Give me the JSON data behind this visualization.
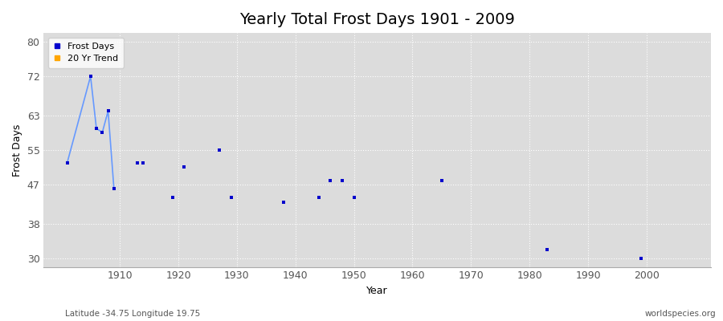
{
  "title": "Yearly Total Frost Days 1901 - 2009",
  "xlabel": "Year",
  "ylabel": "Frost Days",
  "footer_left": "Latitude -34.75 Longitude 19.75",
  "footer_right": "worldspecies.org",
  "xlim": [
    1897,
    2011
  ],
  "ylim": [
    28,
    82
  ],
  "yticks": [
    30,
    38,
    47,
    55,
    63,
    72,
    80
  ],
  "xticks": [
    1910,
    1920,
    1930,
    1940,
    1950,
    1960,
    1970,
    1980,
    1990,
    2000
  ],
  "scatter_color": "#0000cc",
  "line_color": "#6699ff",
  "scatter_data": [
    [
      1901,
      52
    ],
    [
      1905,
      72
    ],
    [
      1906,
      60
    ],
    [
      1907,
      59
    ],
    [
      1908,
      64
    ],
    [
      1909,
      46
    ],
    [
      1913,
      52
    ],
    [
      1914,
      52
    ],
    [
      1919,
      44
    ],
    [
      1921,
      51
    ],
    [
      1927,
      55
    ],
    [
      1929,
      44
    ],
    [
      1938,
      43
    ],
    [
      1944,
      44
    ],
    [
      1946,
      48
    ],
    [
      1948,
      48
    ],
    [
      1950,
      44
    ],
    [
      1965,
      48
    ],
    [
      1983,
      32
    ],
    [
      1999,
      30
    ]
  ],
  "line_data": [
    [
      1901,
      52
    ],
    [
      1905,
      72
    ],
    [
      1906,
      60
    ],
    [
      1907,
      59
    ],
    [
      1908,
      64
    ],
    [
      1909,
      46
    ]
  ],
  "fig_bg_color": "#ffffff",
  "plot_bg_color": "#dcdcdc",
  "grid_color": "#ffffff",
  "legend_labels": [
    "Frost Days",
    "20 Yr Trend"
  ],
  "legend_colors": [
    "#0000cc",
    "#ffa500"
  ],
  "title_fontsize": 14,
  "axis_label_fontsize": 9,
  "tick_fontsize": 9,
  "footer_fontsize": 7.5,
  "scatter_size": 6,
  "line_width": 1.2
}
